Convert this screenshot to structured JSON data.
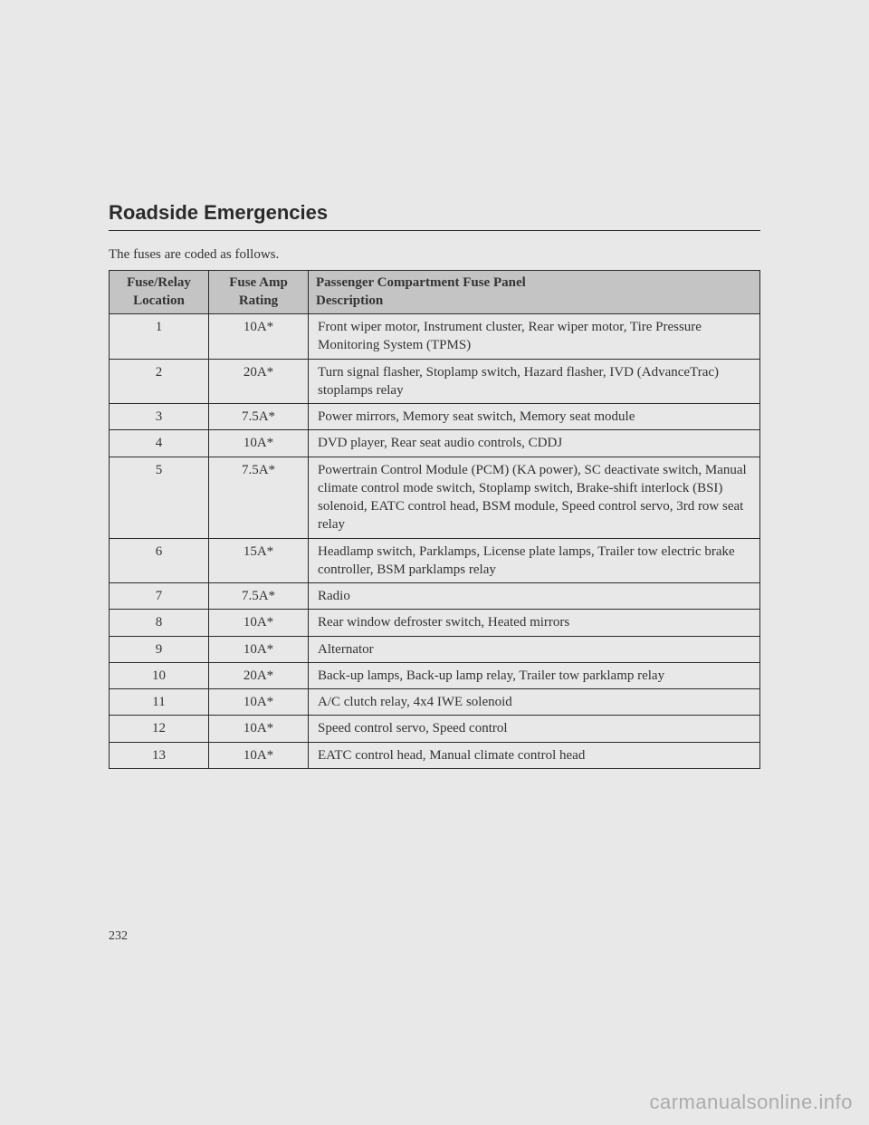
{
  "section_title": "Roadside Emergencies",
  "intro_text": "The fuses are coded as follows.",
  "page_number": "232",
  "watermark": "carmanualsonline.info",
  "table": {
    "headers": {
      "col1_line1": "Fuse/Relay",
      "col1_line2": "Location",
      "col2_line1": "Fuse Amp",
      "col2_line2": "Rating",
      "col3_line1": "Passenger Compartment Fuse Panel",
      "col3_line2": "Description"
    },
    "rows": [
      {
        "loc": "1",
        "amp": "10A*",
        "desc": "Front wiper motor, Instrument cluster, Rear wiper motor, Tire Pressure Monitoring System (TPMS)"
      },
      {
        "loc": "2",
        "amp": "20A*",
        "desc": "Turn signal flasher, Stoplamp switch, Hazard flasher, IVD (AdvanceTrac) stoplamps relay"
      },
      {
        "loc": "3",
        "amp": "7.5A*",
        "desc": "Power mirrors, Memory seat switch, Memory seat module"
      },
      {
        "loc": "4",
        "amp": "10A*",
        "desc": "DVD player, Rear seat audio controls, CDDJ"
      },
      {
        "loc": "5",
        "amp": "7.5A*",
        "desc": "Powertrain Control Module (PCM) (KA power), SC deactivate switch, Manual climate control mode switch, Stoplamp switch, Brake-shift interlock (BSI) solenoid, EATC control head, BSM module, Speed control servo, 3rd row seat relay"
      },
      {
        "loc": "6",
        "amp": "15A*",
        "desc": "Headlamp switch, Parklamps, License plate lamps, Trailer tow electric brake controller, BSM parklamps relay"
      },
      {
        "loc": "7",
        "amp": "7.5A*",
        "desc": "Radio"
      },
      {
        "loc": "8",
        "amp": "10A*",
        "desc": "Rear window defroster switch, Heated mirrors"
      },
      {
        "loc": "9",
        "amp": "10A*",
        "desc": "Alternator"
      },
      {
        "loc": "10",
        "amp": "20A*",
        "desc": "Back-up lamps, Back-up lamp relay, Trailer tow parklamp relay"
      },
      {
        "loc": "11",
        "amp": "10A*",
        "desc": "A/C clutch relay, 4x4 IWE solenoid"
      },
      {
        "loc": "12",
        "amp": "10A*",
        "desc": "Speed control servo, Speed control"
      },
      {
        "loc": "13",
        "amp": "10A*",
        "desc": "EATC control head, Manual climate control head"
      }
    ]
  }
}
